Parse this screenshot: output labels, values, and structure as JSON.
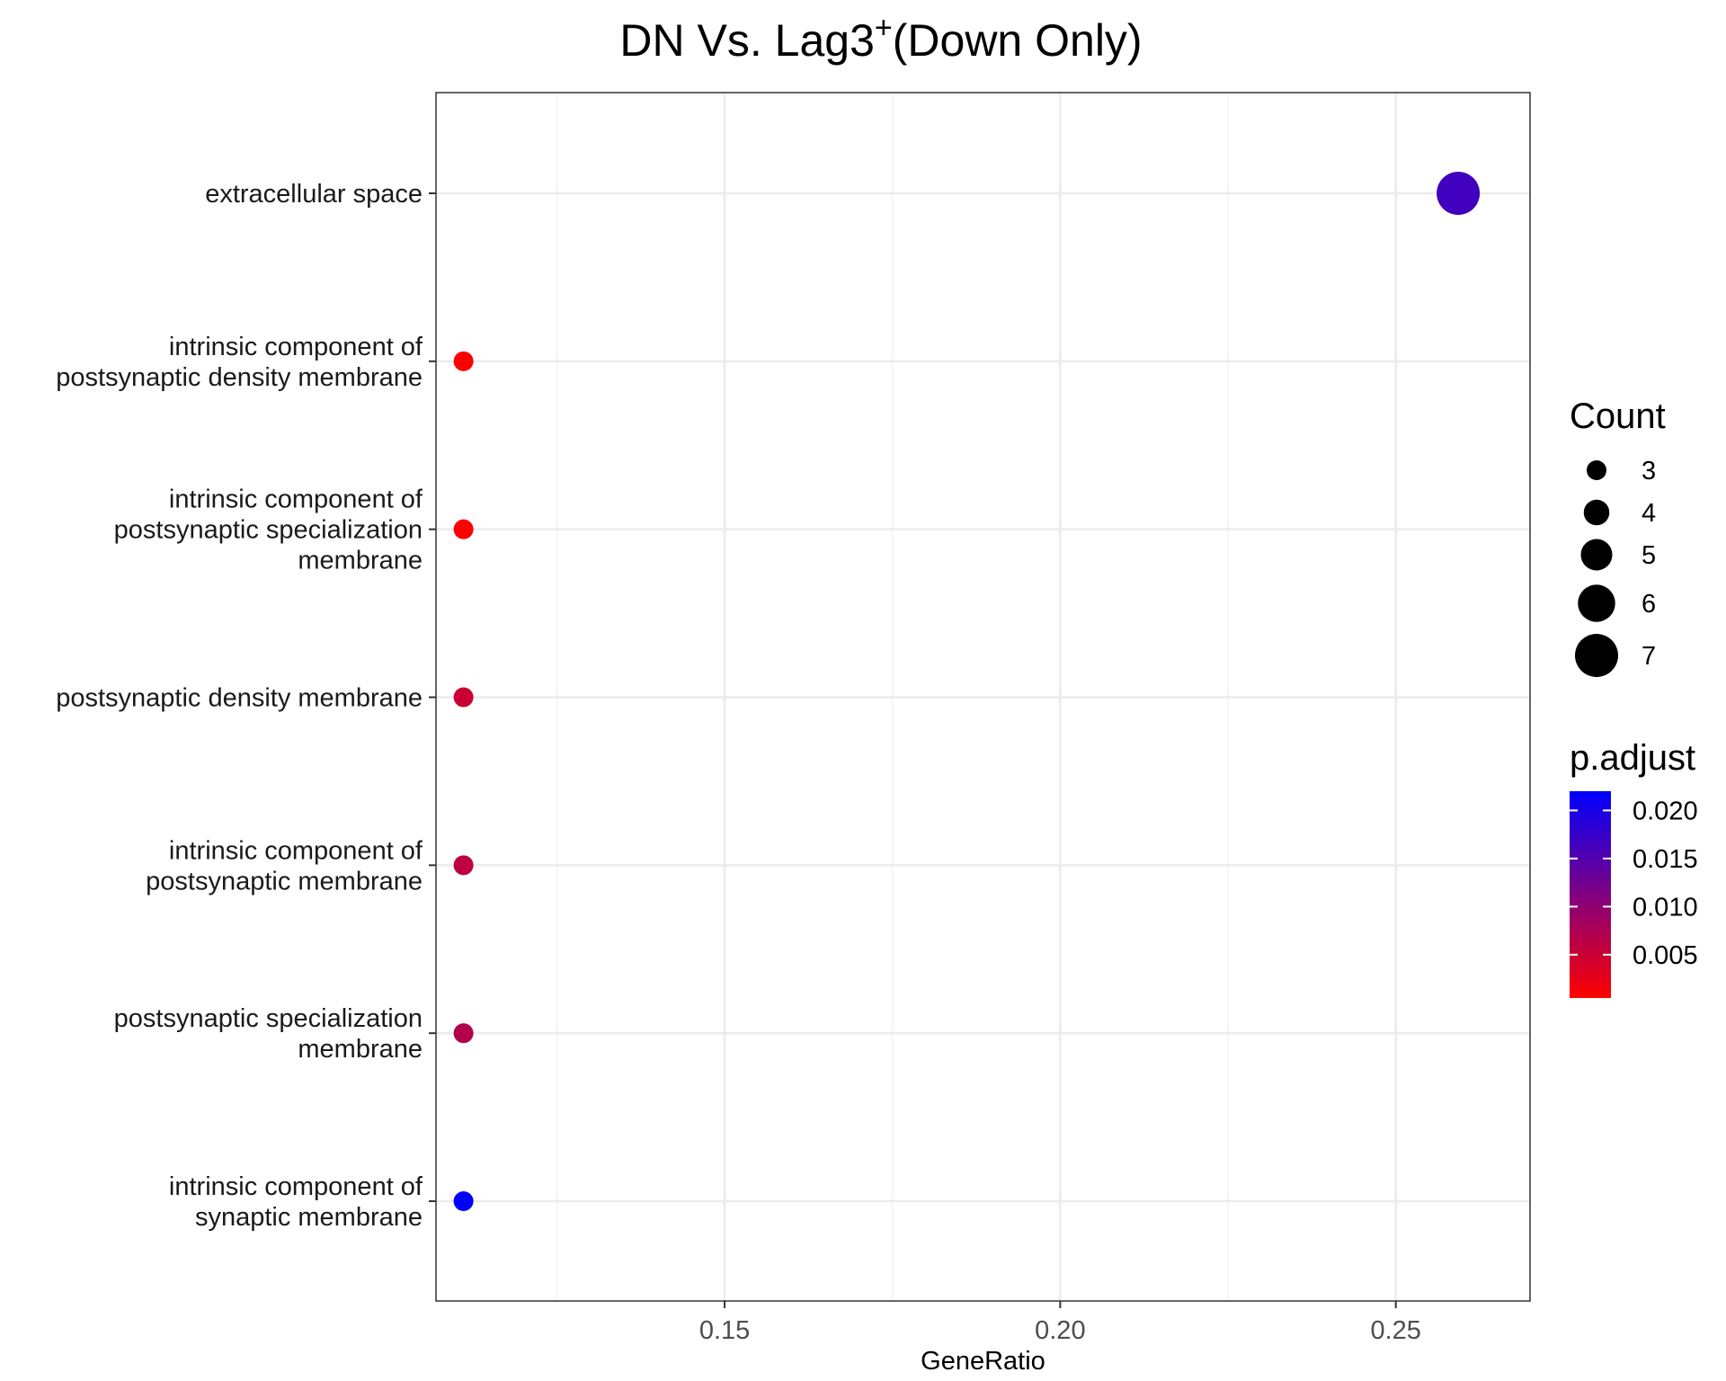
{
  "chart_data": {
    "type": "scatter",
    "title_main": "DN Vs. Lag3",
    "title_sup": "+",
    "title_rest": "(Down Only)",
    "xlabel": "GeneRatio",
    "ylabel": "",
    "xlim": [
      0.107,
      0.27
    ],
    "x_ticks": [
      0.15,
      0.2,
      0.25
    ],
    "x_tick_labels": [
      "0.15",
      "0.20",
      "0.25"
    ],
    "grid": true,
    "categories": [
      [
        "extracellular space"
      ],
      [
        "intrinsic component of",
        "postsynaptic density membrane"
      ],
      [
        "intrinsic component of",
        "postsynaptic specialization",
        "membrane"
      ],
      [
        "postsynaptic density membrane"
      ],
      [
        "intrinsic component of",
        "postsynaptic membrane"
      ],
      [
        "postsynaptic specialization",
        "membrane"
      ],
      [
        "intrinsic component of",
        "synaptic membrane"
      ]
    ],
    "points": [
      {
        "x": 0.2593,
        "count": 7,
        "p_adjust": 0.0165
      },
      {
        "x": 0.1111,
        "count": 3,
        "p_adjust": 0.0005
      },
      {
        "x": 0.1111,
        "count": 3,
        "p_adjust": 0.0005
      },
      {
        "x": 0.1111,
        "count": 3,
        "p_adjust": 0.005
      },
      {
        "x": 0.1111,
        "count": 3,
        "p_adjust": 0.006
      },
      {
        "x": 0.1111,
        "count": 3,
        "p_adjust": 0.007
      },
      {
        "x": 0.1111,
        "count": 3,
        "p_adjust": 0.022
      }
    ],
    "legend_count": {
      "title": "Count",
      "values": [
        3,
        4,
        5,
        6,
        7
      ],
      "labels": [
        "3",
        "4",
        "5",
        "6",
        "7"
      ]
    },
    "legend_padjust": {
      "title": "p.adjust",
      "range": [
        0.0005,
        0.022
      ],
      "ticks": [
        0.005,
        0.01,
        0.015,
        0.02
      ],
      "tick_labels": [
        "0.005",
        "0.010",
        "0.015",
        "0.020"
      ],
      "color_low": "#ff0000",
      "color_high": "#0000ff"
    },
    "legend_placement": "right"
  }
}
